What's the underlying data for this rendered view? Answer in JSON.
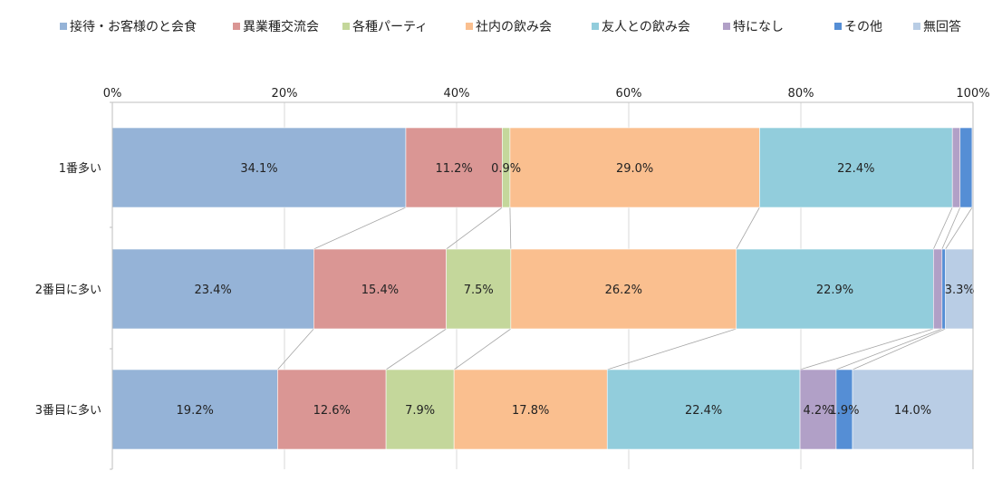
{
  "chart_data": {
    "type": "bar",
    "orientation": "horizontal",
    "stacked": "percent",
    "title": "",
    "categories": [
      "1番多い",
      "2番目に多い",
      "3番目に多い"
    ],
    "series": [
      {
        "name": "接待・お客様のと会食",
        "color": "#95b3d7",
        "values": [
          34.1,
          23.4,
          19.2
        ],
        "labels": [
          "34.1%",
          "23.4%",
          "19.2%"
        ]
      },
      {
        "name": "異業種交流会",
        "color": "#da9694",
        "values": [
          11.2,
          15.4,
          12.6
        ],
        "labels": [
          "11.2%",
          "15.4%",
          "12.6%"
        ]
      },
      {
        "name": "各種パーティ",
        "color": "#c4d79b",
        "values": [
          0.9,
          7.5,
          7.9
        ],
        "labels": [
          "0.9%",
          "7.5%",
          "7.9%"
        ]
      },
      {
        "name": "社内の飲み会",
        "color": "#fabf8f",
        "values": [
          29.0,
          26.2,
          17.8
        ],
        "labels": [
          "29.0%",
          "26.2%",
          "17.8%"
        ]
      },
      {
        "name": "友人との飲み会",
        "color": "#92cddc",
        "values": [
          22.4,
          22.9,
          22.4
        ],
        "labels": [
          "22.4%",
          "22.9%",
          "22.4%"
        ]
      },
      {
        "name": "特になし",
        "color": "#b1a0c7",
        "values": [
          0.9,
          1.0,
          4.2
        ],
        "labels": [
          "",
          "",
          "4.2%"
        ]
      },
      {
        "name": "その他",
        "color": "#558ed5",
        "values": [
          1.4,
          0.4,
          1.9
        ],
        "labels": [
          "",
          "",
          "1.9%"
        ]
      },
      {
        "name": "無回答",
        "color": "#b9cde5",
        "values": [
          0.1,
          3.3,
          14.0
        ],
        "labels": [
          "",
          "3.3%",
          "14.0%"
        ]
      }
    ],
    "xaxis": {
      "ticks": [
        "0%",
        "20%",
        "40%",
        "60%",
        "80%",
        "100%"
      ],
      "range": [
        0,
        100
      ]
    },
    "grid": true,
    "series_lines": true,
    "legend_position": "top"
  }
}
